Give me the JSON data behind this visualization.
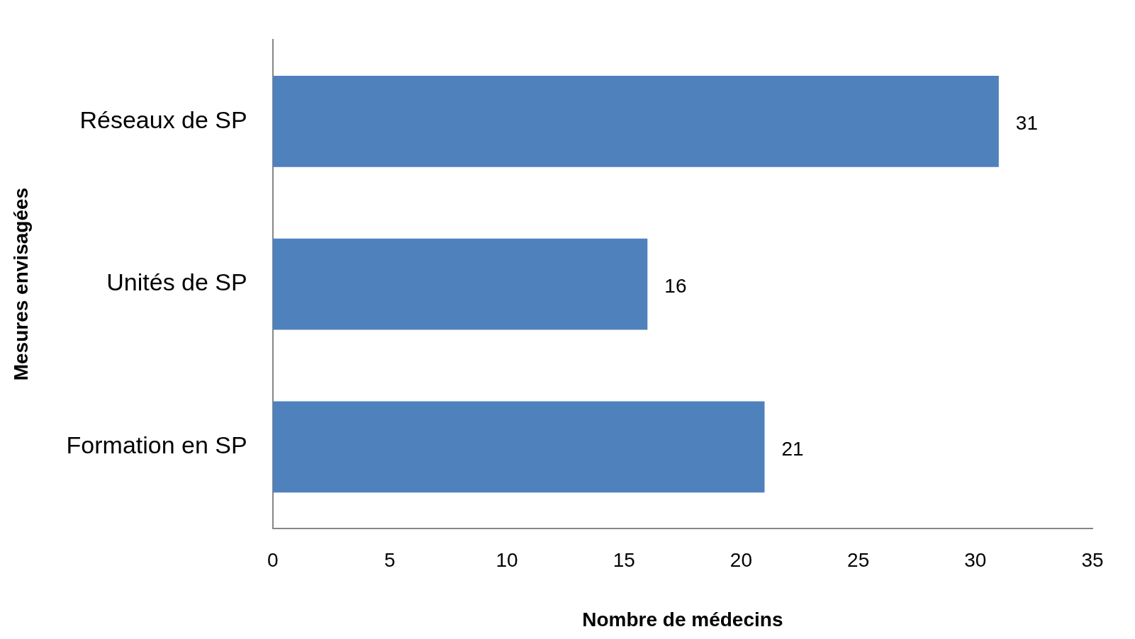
{
  "chart_data": {
    "type": "bar",
    "orientation": "horizontal",
    "categories": [
      "Réseaux de SP",
      "Unités de SP",
      "Formation en SP"
    ],
    "values": [
      31,
      16,
      21
    ],
    "color": "#4f81bd",
    "xlim": [
      0,
      35
    ],
    "xticks": [
      0,
      5,
      10,
      15,
      20,
      25,
      30,
      35
    ],
    "xlabel": "Nombre de médecins",
    "ylabel": "Mesures envisagées",
    "data_labels": true
  }
}
